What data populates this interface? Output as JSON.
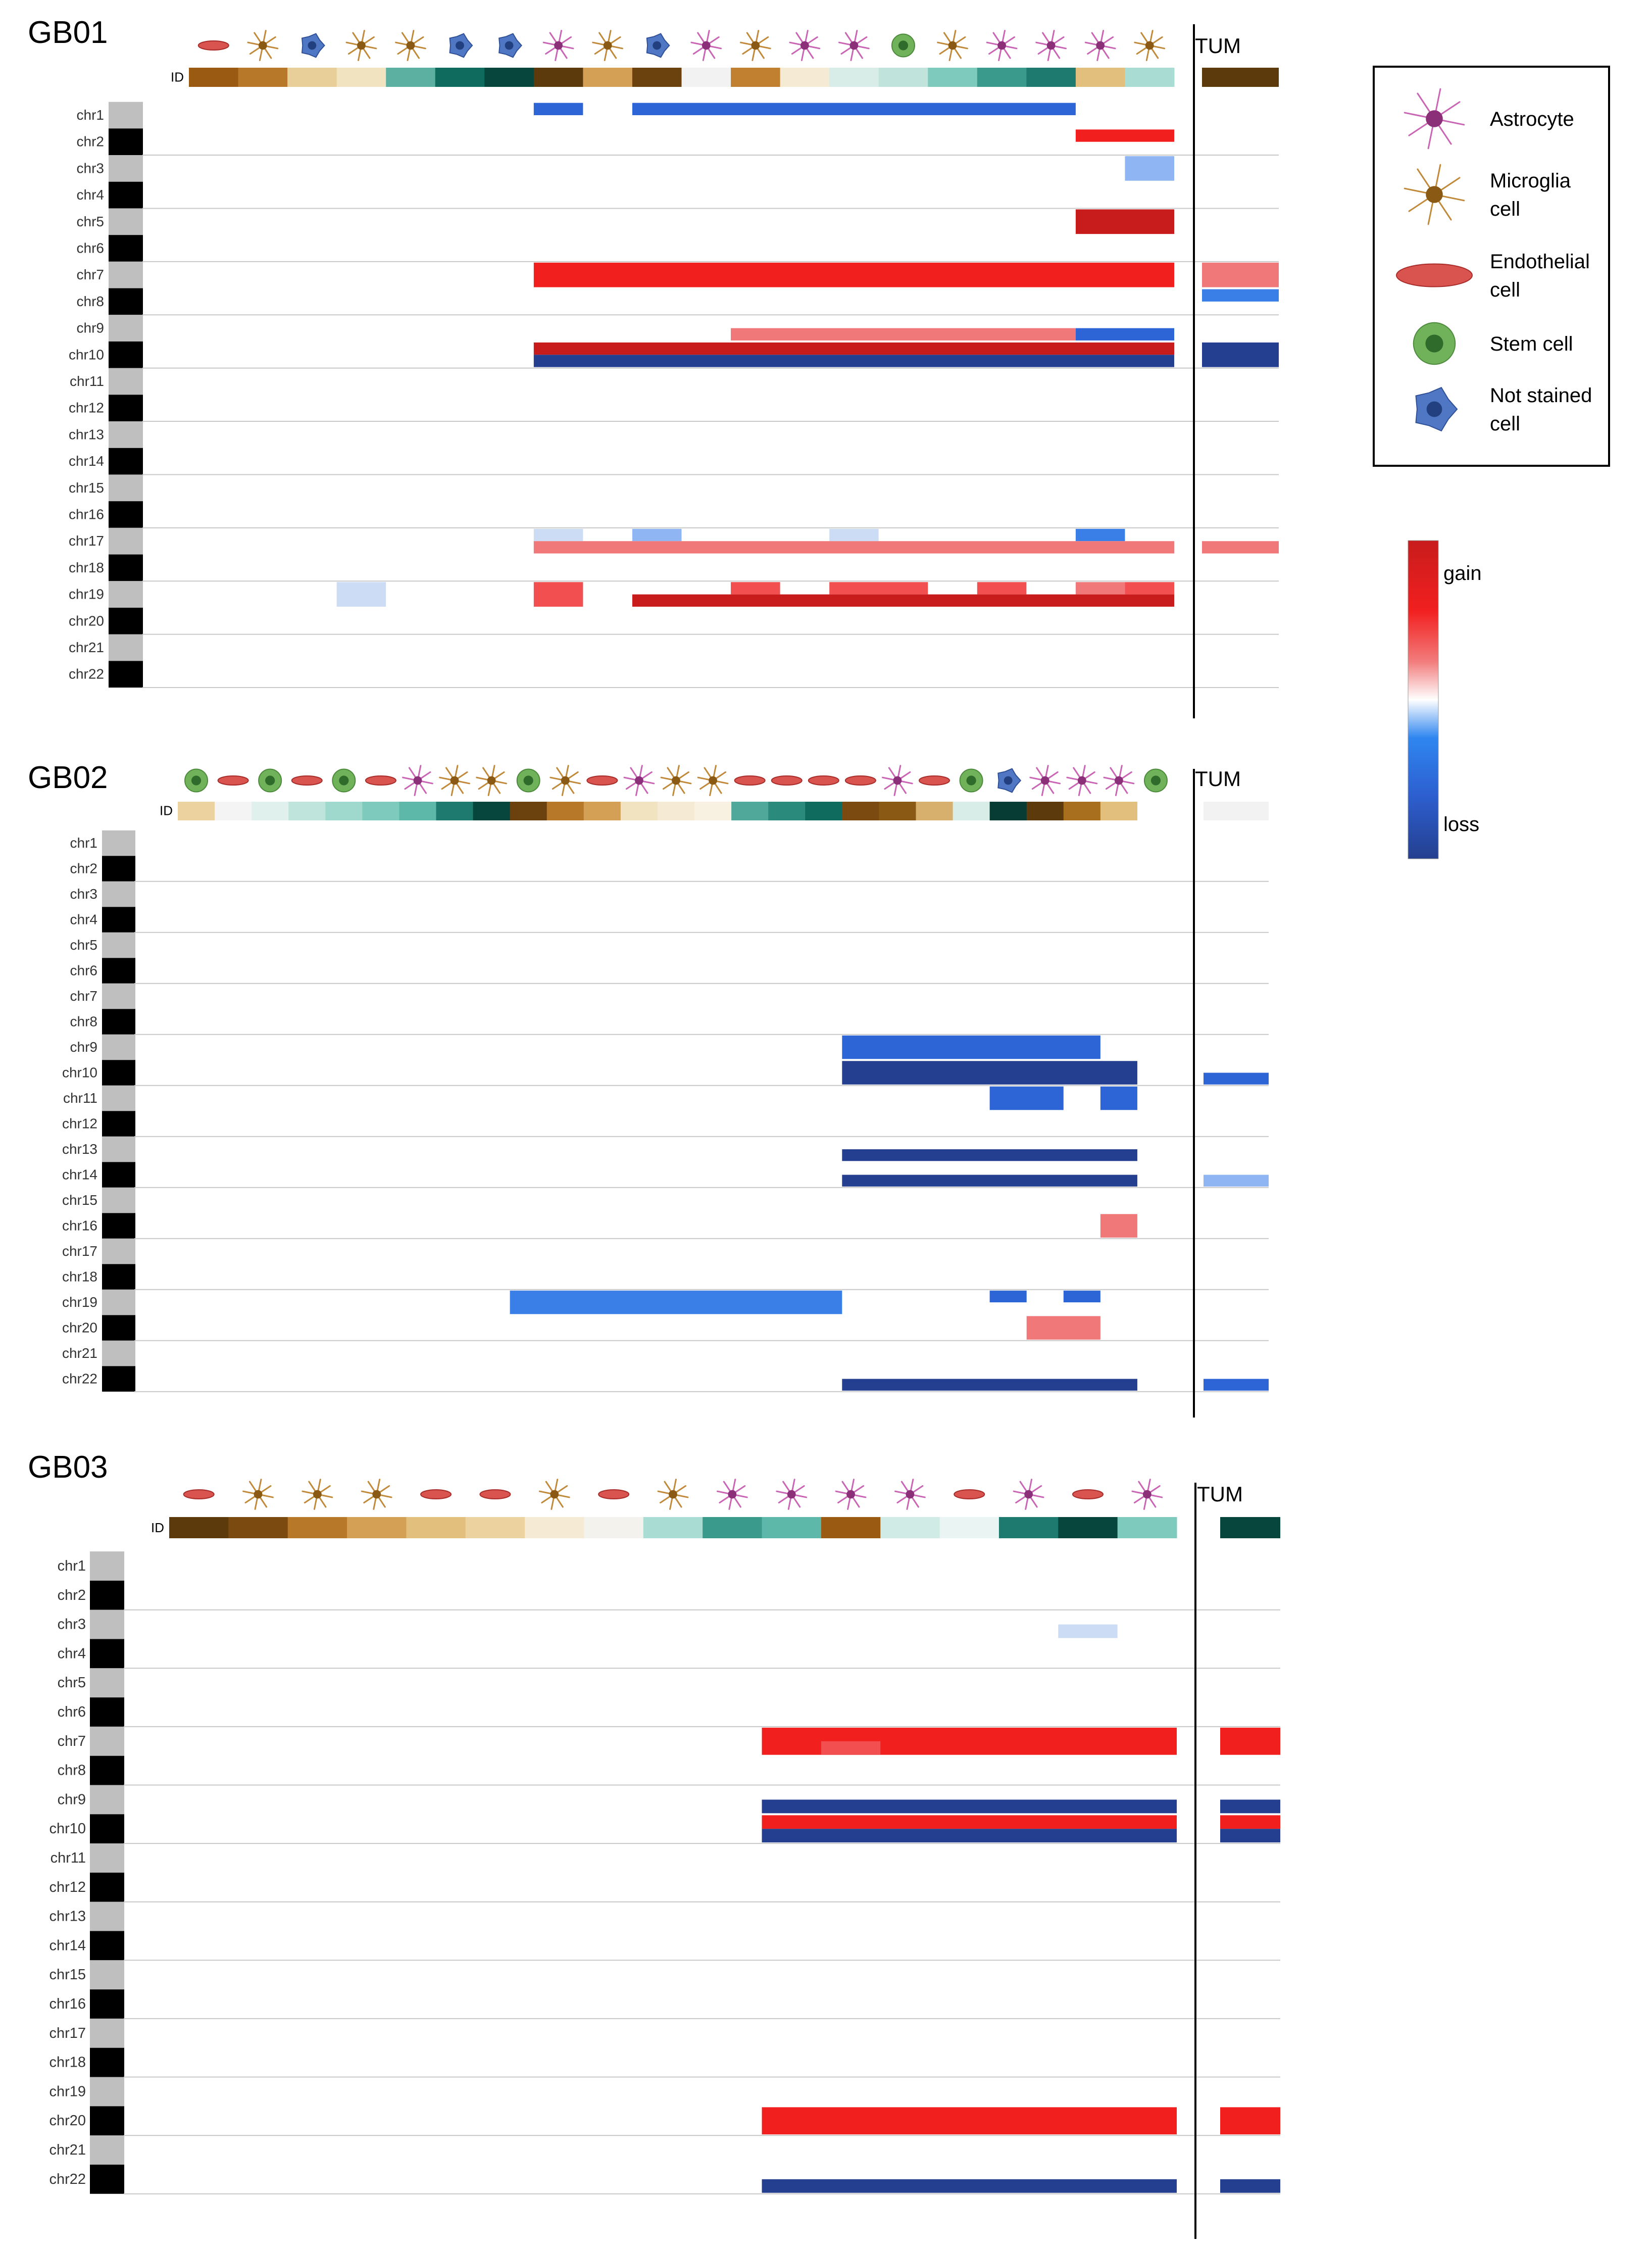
{
  "title": "",
  "colors": {
    "gain_dark": "#c81c1c",
    "gain": "#f21f1f",
    "gain_mid": "#f25050",
    "gain_light": "#f07878",
    "loss_dark": "#243f8f",
    "loss": "#2d64d6",
    "loss_mid": "#3a7fe8",
    "loss_light": "#8fb6f2",
    "loss_pale": "#cddcf5",
    "chr_gray": "#bfbfbf",
    "chr_black": "#000000"
  },
  "id_label": "ID",
  "tum_label": "TUM",
  "legend": {
    "items": [
      {
        "label_lines": [
          "Astrocyte"
        ],
        "icon": "astrocyte-icon"
      },
      {
        "label_lines": [
          "Microglia",
          "cell"
        ],
        "icon": "microglia-icon"
      },
      {
        "label_lines": [
          "Endothelial",
          "cell"
        ],
        "icon": "endothelial-icon"
      },
      {
        "label_lines": [
          "Stem cell"
        ],
        "icon": "stem-cell-icon"
      },
      {
        "label_lines": [
          "Not stained",
          "cell"
        ],
        "icon": "not-stained-icon"
      }
    ],
    "colorbar": {
      "top_label": "gain",
      "bottom_label": "loss"
    }
  },
  "chart_data": [
    {
      "type": "heatmap",
      "title": "GB01",
      "value_scale": "gain = positive, loss = negative (-1 to 1)",
      "chromosomes": [
        "chr1",
        "chr2",
        "chr3",
        "chr4",
        "chr5",
        "chr6",
        "chr7",
        "chr8",
        "chr9",
        "chr10",
        "chr11",
        "chr12",
        "chr13",
        "chr14",
        "chr15",
        "chr16",
        "chr17",
        "chr18",
        "chr19",
        "chr20",
        "chr21",
        "chr22"
      ],
      "cell_types": [
        "endothelial",
        "microglia",
        "not-stained",
        "microglia",
        "microglia",
        "not-stained",
        "not-stained",
        "astrocyte",
        "microglia",
        "not-stained",
        "astrocyte",
        "microglia",
        "astrocyte",
        "astrocyte",
        "stem",
        "microglia",
        "astrocyte",
        "astrocyte",
        "astrocyte",
        "microglia"
      ],
      "id_colors": [
        "#9a5a12",
        "#b8782a",
        "#e8cf9a",
        "#f2e3c0",
        "#5bb0a2",
        "#0e6b5e",
        "#06463d",
        "#5c3a0c",
        "#d4a055",
        "#6b420e",
        "#f2f2f2",
        "#c08030",
        "#f5ead4",
        "#d8ece8",
        "#c0e4dc",
        "#7ecabd",
        "#3a9a8c",
        "#1e7a6e",
        "#e2bf7c",
        "#a9dcd2"
      ],
      "tum_color": "#5c3a0c",
      "cells": [
        {
          "chr": "chr1",
          "col": 7,
          "span": 1,
          "band": "top",
          "value": -0.75
        },
        {
          "chr": "chr1",
          "col": 9,
          "span": 9,
          "band": "top",
          "value": -0.75
        },
        {
          "chr": "chr2",
          "col": 18,
          "span": 2,
          "band": "top",
          "value": 0.9
        },
        {
          "chr": "chr3",
          "col": 19,
          "span": 1,
          "band": "full",
          "value": -0.4
        },
        {
          "chr": "chr5",
          "col": 18,
          "span": 2,
          "band": "full",
          "value": 0.85
        },
        {
          "chr": "chr7",
          "col": 7,
          "span": 13,
          "band": "full",
          "value": 0.9
        },
        {
          "chr": "chr7",
          "col": "tum",
          "band": "full",
          "value": 0.6
        },
        {
          "chr": "chr8",
          "col": "tum",
          "band": "top",
          "value": -0.6
        },
        {
          "chr": "chr9",
          "col": 11,
          "span": 7,
          "band": "bottom",
          "value": 0.55
        },
        {
          "chr": "chr9",
          "col": 18,
          "span": 2,
          "band": "bottom",
          "value": -0.8
        },
        {
          "chr": "chr10",
          "col": 7,
          "span": 13,
          "band": "top",
          "value": 0.85
        },
        {
          "chr": "chr10",
          "col": 7,
          "span": 13,
          "band": "bottom",
          "value": -0.95
        },
        {
          "chr": "chr10",
          "col": "tum",
          "band": "full",
          "value": -0.95
        },
        {
          "chr": "chr17",
          "col": 7,
          "span": 1,
          "band": "top",
          "value": -0.25
        },
        {
          "chr": "chr17",
          "col": 9,
          "span": 1,
          "band": "top",
          "value": -0.45
        },
        {
          "chr": "chr17",
          "col": 13,
          "span": 1,
          "band": "top",
          "value": -0.25
        },
        {
          "chr": "chr17",
          "col": 18,
          "span": 1,
          "band": "top",
          "value": -0.65
        },
        {
          "chr": "chr17",
          "col": 7,
          "span": 13,
          "band": "bottom",
          "value": 0.6
        },
        {
          "chr": "chr17",
          "col": "tum",
          "band": "bottom",
          "value": 0.4
        },
        {
          "chr": "chr19",
          "col": 3,
          "span": 1,
          "band": "full",
          "value": -0.2
        },
        {
          "chr": "chr19",
          "col": 7,
          "span": 1,
          "band": "full",
          "value": 0.75
        },
        {
          "chr": "chr19",
          "col": 9,
          "span": 11,
          "band": "bottom",
          "value": 0.85
        },
        {
          "chr": "chr19",
          "col": 11,
          "span": 1,
          "band": "top",
          "value": 0.7
        },
        {
          "chr": "chr19",
          "col": 13,
          "span": 2,
          "band": "top",
          "value": 0.7
        },
        {
          "chr": "chr19",
          "col": 16,
          "span": 1,
          "band": "top",
          "value": 0.7
        },
        {
          "chr": "chr19",
          "col": 18,
          "span": 1,
          "band": "top",
          "value": 0.6
        },
        {
          "chr": "chr19",
          "col": 19,
          "span": 1,
          "band": "top",
          "value": 0.7
        }
      ]
    },
    {
      "type": "heatmap",
      "title": "GB02",
      "value_scale": "gain = positive, loss = negative (-1 to 1)",
      "chromosomes": [
        "chr1",
        "chr2",
        "chr3",
        "chr4",
        "chr5",
        "chr6",
        "chr7",
        "chr8",
        "chr9",
        "chr10",
        "chr11",
        "chr12",
        "chr13",
        "chr14",
        "chr15",
        "chr16",
        "chr17",
        "chr18",
        "chr19",
        "chr20",
        "chr21",
        "chr22"
      ],
      "cell_types": [
        "stem",
        "endothelial",
        "stem",
        "endothelial",
        "stem",
        "endothelial",
        "astrocyte",
        "microglia",
        "microglia",
        "stem",
        "microglia",
        "endothelial",
        "astrocyte",
        "microglia",
        "microglia",
        "endothelial",
        "endothelial",
        "endothelial",
        "endothelial",
        "astrocyte",
        "endothelial",
        "stem",
        "not-stained",
        "astrocyte",
        "astrocyte",
        "astrocyte",
        "stem"
      ],
      "id_colors": [
        "#ecd29e",
        "#f4f4f4",
        "#e0f0ec",
        "#bfe4dc",
        "#9fd8cc",
        "#7ecabd",
        "#5eb8aa",
        "#1e7a6e",
        "#06463d",
        "#6b420e",
        "#b8782a",
        "#d4a055",
        "#f2e3c0",
        "#f5ead4",
        "#f8f0e0",
        "#4fa89a",
        "#2a8a7c",
        "#0e6b5e",
        "#7a4a10",
        "#8a5a14",
        "#d8b06e",
        "#d8ece8",
        "#063c34",
        "#5c3a0c",
        "#a8701e",
        "#e2bf7c",
        "#ffffff"
      ],
      "tum_color": "#f2f2f2",
      "cells": [
        {
          "chr": "chr9",
          "col": 18,
          "span": 7,
          "band": "full",
          "value": -0.7
        },
        {
          "chr": "chr10",
          "col": 18,
          "span": 8,
          "band": "full",
          "value": -0.95
        },
        {
          "chr": "chr10",
          "col": "tum",
          "band": "bottom",
          "value": -0.75
        },
        {
          "chr": "chr11",
          "col": 22,
          "span": 2,
          "band": "full",
          "value": -0.85
        },
        {
          "chr": "chr11",
          "col": 25,
          "span": 1,
          "band": "full",
          "value": -0.85
        },
        {
          "chr": "chr13",
          "col": 18,
          "span": 8,
          "band": "bottom",
          "value": -0.95
        },
        {
          "chr": "chr14",
          "col": 18,
          "span": 8,
          "band": "bottom",
          "value": -0.95
        },
        {
          "chr": "chr14",
          "col": "tum",
          "band": "bottom",
          "value": -0.4
        },
        {
          "chr": "chr16",
          "col": 25,
          "span": 1,
          "band": "full",
          "value": 0.6
        },
        {
          "chr": "chr19",
          "col": 9,
          "span": 9,
          "band": "full",
          "value": -0.65
        },
        {
          "chr": "chr19",
          "col": 22,
          "span": 1,
          "band": "top",
          "value": -0.75
        },
        {
          "chr": "chr19",
          "col": 24,
          "span": 1,
          "band": "top",
          "value": -0.85
        },
        {
          "chr": "chr20",
          "col": 23,
          "span": 2,
          "band": "full",
          "value": 0.5
        },
        {
          "chr": "chr22",
          "col": 18,
          "span": 8,
          "band": "bottom",
          "value": -0.95
        },
        {
          "chr": "chr22",
          "col": "tum",
          "band": "bottom",
          "value": -0.8
        }
      ]
    },
    {
      "type": "heatmap",
      "title": "GB03",
      "value_scale": "gain = positive, loss = negative (-1 to 1)",
      "chromosomes": [
        "chr1",
        "chr2",
        "chr3",
        "chr4",
        "chr5",
        "chr6",
        "chr7",
        "chr8",
        "chr9",
        "chr10",
        "chr11",
        "chr12",
        "chr13",
        "chr14",
        "chr15",
        "chr16",
        "chr17",
        "chr18",
        "chr19",
        "chr20",
        "chr21",
        "chr22"
      ],
      "cell_types": [
        "endothelial",
        "microglia",
        "microglia",
        "microglia",
        "endothelial",
        "endothelial",
        "microglia",
        "endothelial",
        "microglia",
        "astrocyte",
        "astrocyte",
        "astrocyte",
        "astrocyte",
        "endothelial",
        "astrocyte",
        "endothelial",
        "astrocyte"
      ],
      "id_colors": [
        "#5c3a0c",
        "#7a4a10",
        "#b8782a",
        "#d4a055",
        "#e2bf7c",
        "#ecd29e",
        "#f5ead4",
        "#f4f2ec",
        "#a9dcd2",
        "#3a9a8c",
        "#5eb8aa",
        "#9a5a12",
        "#d0ebe5",
        "#eaf4f2",
        "#1e7a6e",
        "#06463d",
        "#7ecabd"
      ],
      "tum_color": "#06463d",
      "cells": [
        {
          "chr": "chr3",
          "col": 15,
          "span": 1,
          "band": "bottom",
          "value": -0.2
        },
        {
          "chr": "chr7",
          "col": 10,
          "span": 7,
          "band": "full",
          "value": 0.95
        },
        {
          "chr": "chr7",
          "col": 11,
          "span": 1,
          "band": "bottom",
          "value": 0.75
        },
        {
          "chr": "chr7",
          "col": "tum",
          "band": "full",
          "value": 0.95
        },
        {
          "chr": "chr9",
          "col": 10,
          "span": 7,
          "band": "bottom",
          "value": -0.95
        },
        {
          "chr": "chr9",
          "col": "tum",
          "band": "bottom",
          "value": -0.95
        },
        {
          "chr": "chr10",
          "col": 10,
          "span": 7,
          "band": "top",
          "value": 0.95
        },
        {
          "chr": "chr10",
          "col": 10,
          "span": 7,
          "band": "bottom",
          "value": -0.95
        },
        {
          "chr": "chr10",
          "col": "tum",
          "band": "top",
          "value": 0.95
        },
        {
          "chr": "chr10",
          "col": "tum",
          "band": "bottom",
          "value": -0.95
        },
        {
          "chr": "chr20",
          "col": 10,
          "span": 7,
          "band": "full",
          "value": 0.95
        },
        {
          "chr": "chr20",
          "col": "tum",
          "band": "full",
          "value": 0.95
        },
        {
          "chr": "chr22",
          "col": 10,
          "span": 7,
          "band": "bottom",
          "value": -0.95
        },
        {
          "chr": "chr22",
          "col": "tum",
          "band": "bottom",
          "value": -0.95
        }
      ]
    }
  ]
}
